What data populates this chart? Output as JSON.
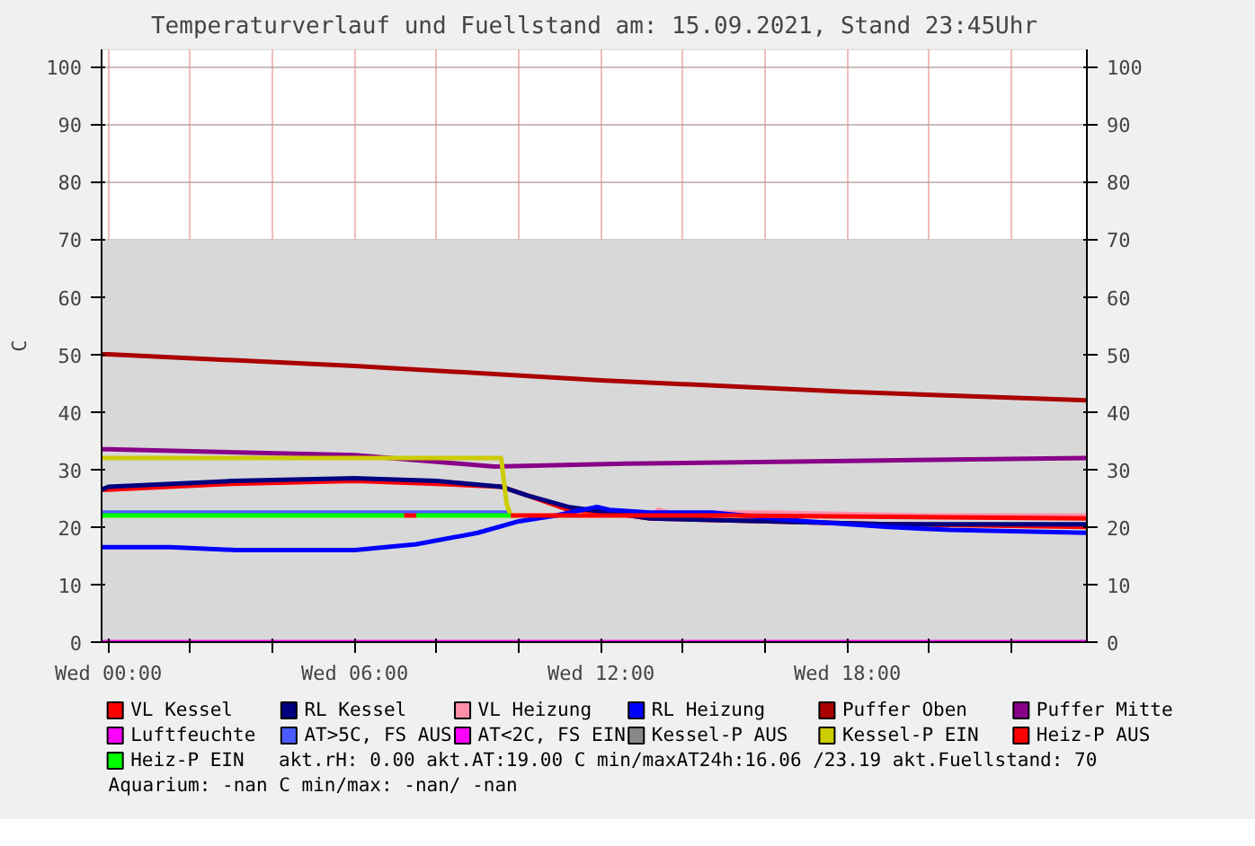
{
  "chart_data": {
    "type": "line",
    "title": "Temperaturverlauf und Fuellstand am: 15.09.2021, Stand 23:45Uhr",
    "ylabel": "C",
    "xlim": [
      "2021-09-14T23:50",
      "2021-09-15T23:50"
    ],
    "xticks": [
      {
        "value": "2021-09-15T00:00",
        "label": "Wed 00:00"
      },
      {
        "value": "2021-09-15T02:00",
        "label": null
      },
      {
        "value": "2021-09-15T04:00",
        "label": null
      },
      {
        "value": "2021-09-15T06:00",
        "label": "Wed 06:00"
      },
      {
        "value": "2021-09-15T08:00",
        "label": null
      },
      {
        "value": "2021-09-15T10:00",
        "label": null
      },
      {
        "value": "2021-09-15T12:00",
        "label": "Wed 12:00"
      },
      {
        "value": "2021-09-15T14:00",
        "label": null
      },
      {
        "value": "2021-09-15T16:00",
        "label": null
      },
      {
        "value": "2021-09-15T18:00",
        "label": "Wed 18:00"
      },
      {
        "value": "2021-09-15T20:00",
        "label": null
      },
      {
        "value": "2021-09-15T22:00",
        "label": null
      }
    ],
    "ylim": [
      0,
      103
    ],
    "yticks": [
      0,
      10,
      20,
      30,
      40,
      50,
      60,
      70,
      80,
      90,
      100
    ],
    "y2lim": [
      0,
      103
    ],
    "y2ticks": [
      0,
      10,
      20,
      30,
      40,
      50,
      60,
      70,
      80,
      90,
      100
    ],
    "grid": true,
    "legend": "bottom",
    "series": [
      {
        "type": "area",
        "color": "#d8d8d8",
        "x": [
          "2021-09-14T23:50",
          "2021-09-15T23:50"
        ],
        "values": [
          70,
          70
        ]
      },
      {
        "name": "VL Kessel",
        "color": "#ff0000",
        "x": [
          "2021-09-14T23:50",
          "2021-09-15T00:00",
          "2021-09-15T03:00",
          "2021-09-15T06:00",
          "2021-09-15T08:00",
          "2021-09-15T09:34",
          "2021-09-15T10:12",
          "2021-09-15T11:12",
          "2021-09-15T12:12",
          "2021-09-15T13:12",
          "2021-09-15T19:00",
          "2021-09-15T23:50"
        ],
        "values": [
          26.5,
          26.5,
          27.5,
          28,
          27.5,
          27,
          25.5,
          23,
          22.5,
          21.5,
          20.5,
          20
        ]
      },
      {
        "name": "RL Kessel",
        "color": "#000080",
        "x": [
          "2021-09-14T23:50",
          "2021-09-15T00:00",
          "2021-09-15T03:00",
          "2021-09-15T06:00",
          "2021-09-15T08:00",
          "2021-09-15T09:34",
          "2021-09-15T10:12",
          "2021-09-15T11:12",
          "2021-09-15T12:12",
          "2021-09-15T13:12",
          "2021-09-15T19:00",
          "2021-09-15T23:50"
        ],
        "values": [
          26.5,
          27,
          28,
          28.5,
          28,
          27,
          25.5,
          23.5,
          22.5,
          21.5,
          20.5,
          20.5
        ]
      },
      {
        "name": "VL Heizung",
        "color": "#ff8fa8",
        "x": [
          "2021-09-15T13:12",
          "2021-09-15T13:24",
          "2021-09-15T13:42",
          "2021-09-15T16:00",
          "2021-09-15T20:00",
          "2021-09-15T23:50"
        ],
        "values": [
          22,
          23,
          22.5,
          22.5,
          22,
          22
        ]
      },
      {
        "name": "RL Heizung",
        "color": "#0000ff",
        "x": [
          "2021-09-14T23:50",
          "2021-09-15T00:00",
          "2021-09-15T01:30",
          "2021-09-15T03:06",
          "2021-09-15T06:00",
          "2021-09-15T07:30",
          "2021-09-15T09:00",
          "2021-09-15T10:00",
          "2021-09-15T10:54",
          "2021-09-15T11:54",
          "2021-09-15T12:12",
          "2021-09-15T13:12",
          "2021-09-15T14:42",
          "2021-09-15T17:00",
          "2021-09-15T19:00",
          "2021-09-15T20:30",
          "2021-09-15T23:50"
        ],
        "values": [
          16.5,
          16.5,
          16.5,
          16,
          16,
          17,
          19,
          21,
          22,
          23.5,
          23,
          22.5,
          22.5,
          21,
          20,
          19.5,
          19
        ]
      },
      {
        "name": "Puffer Oben",
        "color": "#aa0000",
        "x": [
          "2021-09-14T23:50",
          "2021-09-15T00:00",
          "2021-09-15T06:00",
          "2021-09-15T12:00",
          "2021-09-15T18:00",
          "2021-09-15T23:50"
        ],
        "values": [
          50,
          50,
          48,
          45.5,
          43.5,
          42
        ]
      },
      {
        "name": "Puffer Mitte",
        "color": "#880088",
        "x": [
          "2021-09-14T23:50",
          "2021-09-15T00:00",
          "2021-09-15T06:00",
          "2021-09-15T09:24",
          "2021-09-15T12:36",
          "2021-09-15T18:00",
          "2021-09-15T23:50"
        ],
        "values": [
          33.5,
          33.5,
          32.5,
          30.5,
          31,
          31.5,
          32
        ]
      },
      {
        "name": "Luftfeuchte",
        "color": "#ff00ff",
        "x": [
          "2021-09-14T23:50",
          "2021-09-15T23:50"
        ],
        "values": [
          0,
          0
        ]
      },
      {
        "name": "AT>5C, FS AUS",
        "color": "#4a5cff",
        "x": [
          "2021-09-14T23:50",
          "2021-09-15T09:48"
        ],
        "values": [
          22.5,
          22.5
        ]
      },
      {
        "name": "AT<2C, FS EIN",
        "color": "#ff00ff"
      },
      {
        "name": "Kessel-P AUS",
        "color": "#888888"
      },
      {
        "name": "Kessel-P EIN",
        "color": "#cccc00",
        "x": [
          "2021-09-14T23:50",
          "2021-09-15T00:00",
          "2021-09-15T06:00",
          "2021-09-15T09:34",
          "2021-09-15T09:42",
          "2021-09-15T09:48",
          "2021-09-15T10:00"
        ],
        "values": [
          32,
          32,
          32,
          32,
          24,
          22,
          22
        ]
      },
      {
        "name": "Heiz-P AUS",
        "color": "#ff0000",
        "x": [
          "2021-09-15T07:12",
          "2021-09-15T07:30",
          "2021-09-15T07:33",
          "2021-09-15T09:48",
          "2021-09-15T15:00",
          "2021-09-15T23:50"
        ],
        "values": [
          22,
          22,
          null,
          22,
          22,
          21.5
        ]
      },
      {
        "name": "Heiz-P EIN",
        "color": "#00ff00",
        "x": [
          "2021-09-14T23:50",
          "2021-09-15T07:12",
          "2021-09-15T07:15",
          "2021-09-15T07:30",
          "2021-09-15T09:48"
        ],
        "values": [
          22,
          22,
          null,
          22,
          22
        ]
      }
    ],
    "annotations": [
      "akt.rH: 0.00   akt.AT:19.00 C   min/maxAT24h:16.06 /23.19   akt.Fuellstand:   70",
      "Aquarium: -nan C  min/max: -nan/ -nan"
    ]
  }
}
